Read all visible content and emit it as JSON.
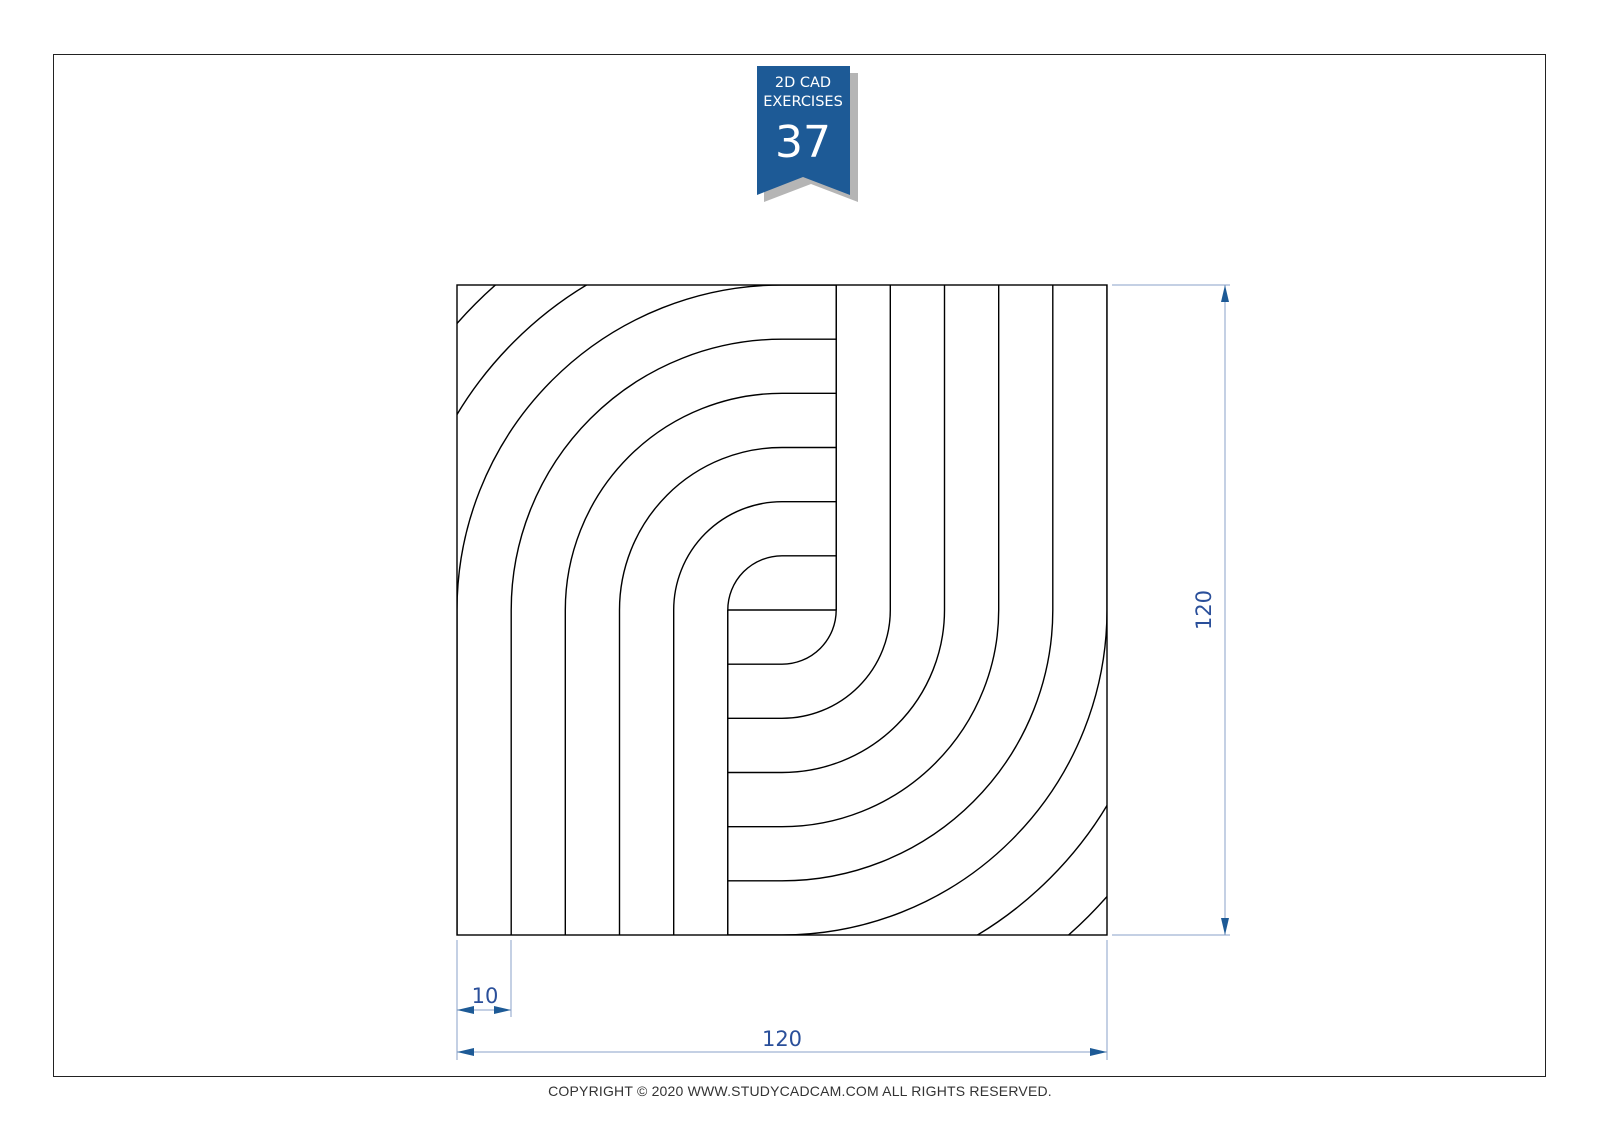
{
  "badge": {
    "line1": "2D CAD",
    "line2": "EXERCISES",
    "number": "37",
    "color": "#1d5a96",
    "shadow_color": "#b5b5b5"
  },
  "dimensions": {
    "width": "120",
    "height": "120",
    "stripe": "10",
    "color": "#2a4f9a"
  },
  "footer": {
    "prefix": "COPYRIGHT © 2020 ",
    "site": "WWW.STUDYCADCAM.COM",
    "suffix": " ALL RIGHTS RESERVED."
  }
}
